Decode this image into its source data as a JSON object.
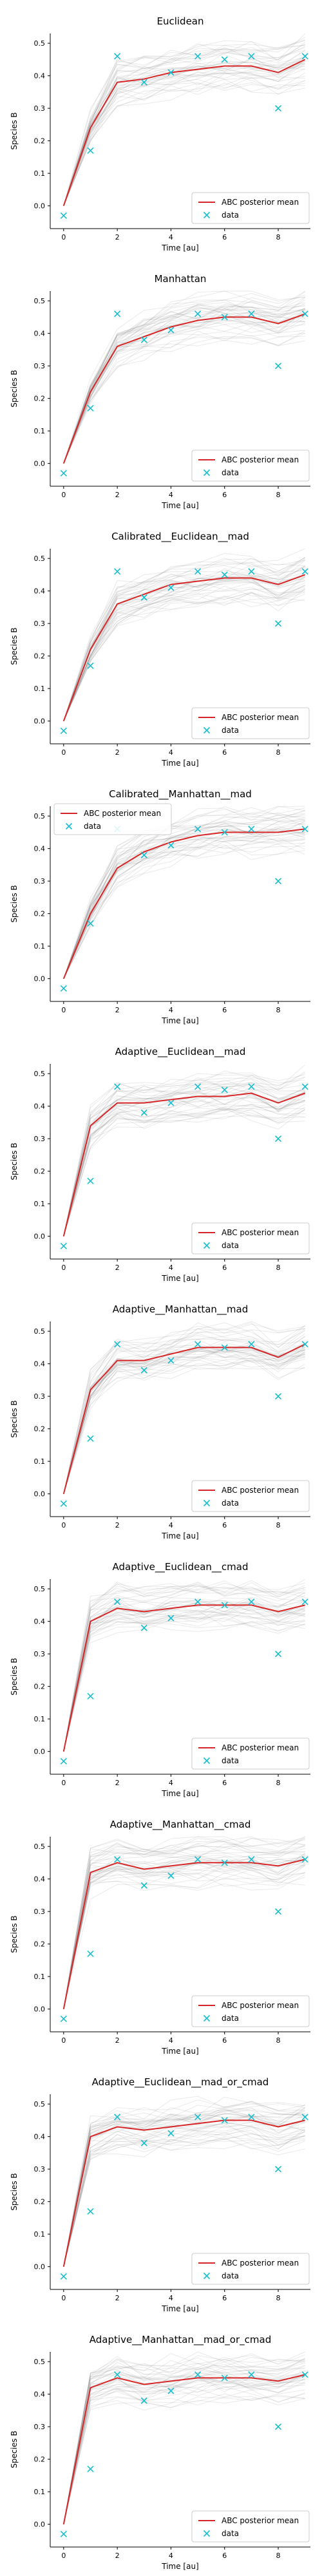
{
  "chart_data": [
    {
      "type": "line",
      "title": "Euclidean",
      "xlabel": "Time [au]",
      "ylabel": "Species B",
      "xlim": [
        -0.5,
        9.2
      ],
      "ylim": [
        -0.07,
        0.53
      ],
      "xticks": [
        0,
        2,
        4,
        6,
        8
      ],
      "yticks": [
        0.0,
        0.1,
        0.2,
        0.3,
        0.4,
        0.5
      ],
      "legend_position": "bottom-right",
      "colors": {
        "posterior": "#d62728",
        "data": "#17becf",
        "samples": "#888888"
      },
      "series": [
        {
          "name": "ABC posterior mean",
          "style": "line",
          "x": [
            0,
            1,
            2,
            3,
            4,
            5,
            6,
            7,
            8,
            9
          ],
          "y": [
            0.0,
            0.24,
            0.38,
            0.39,
            0.41,
            0.42,
            0.43,
            0.43,
            0.41,
            0.45
          ]
        },
        {
          "name": "data",
          "style": "markers",
          "x": [
            0,
            1,
            2,
            3,
            4,
            5,
            6,
            7,
            8,
            9
          ],
          "y": [
            -0.03,
            0.17,
            0.46,
            0.38,
            0.41,
            0.46,
            0.45,
            0.46,
            0.3,
            0.46
          ]
        }
      ]
    },
    {
      "type": "line",
      "title": "Manhattan",
      "xlabel": "Time [au]",
      "ylabel": "Species B",
      "xlim": [
        -0.5,
        9.2
      ],
      "ylim": [
        -0.07,
        0.53
      ],
      "xticks": [
        0,
        2,
        4,
        6,
        8
      ],
      "yticks": [
        0.0,
        0.1,
        0.2,
        0.3,
        0.4,
        0.5
      ],
      "legend_position": "bottom-right",
      "colors": {
        "posterior": "#d62728",
        "data": "#17becf",
        "samples": "#888888"
      },
      "series": [
        {
          "name": "ABC posterior mean",
          "style": "line",
          "x": [
            0,
            1,
            2,
            3,
            4,
            5,
            6,
            7,
            8,
            9
          ],
          "y": [
            0.0,
            0.22,
            0.36,
            0.39,
            0.42,
            0.44,
            0.45,
            0.45,
            0.43,
            0.46
          ]
        },
        {
          "name": "data",
          "style": "markers",
          "x": [
            0,
            1,
            2,
            3,
            4,
            5,
            6,
            7,
            8,
            9
          ],
          "y": [
            -0.03,
            0.17,
            0.46,
            0.38,
            0.41,
            0.46,
            0.45,
            0.46,
            0.3,
            0.46
          ]
        }
      ]
    },
    {
      "type": "line",
      "title": "Calibrated__Euclidean__mad",
      "xlabel": "Time [au]",
      "ylabel": "Species B",
      "xlim": [
        -0.5,
        9.2
      ],
      "ylim": [
        -0.07,
        0.53
      ],
      "xticks": [
        0,
        2,
        4,
        6,
        8
      ],
      "yticks": [
        0.0,
        0.1,
        0.2,
        0.3,
        0.4,
        0.5
      ],
      "legend_position": "bottom-right",
      "colors": {
        "posterior": "#d62728",
        "data": "#17becf",
        "samples": "#888888"
      },
      "series": [
        {
          "name": "ABC posterior mean",
          "style": "line",
          "x": [
            0,
            1,
            2,
            3,
            4,
            5,
            6,
            7,
            8,
            9
          ],
          "y": [
            0.0,
            0.22,
            0.36,
            0.39,
            0.42,
            0.43,
            0.44,
            0.44,
            0.42,
            0.45
          ]
        },
        {
          "name": "data",
          "style": "markers",
          "x": [
            0,
            1,
            2,
            3,
            4,
            5,
            6,
            7,
            8,
            9
          ],
          "y": [
            -0.03,
            0.17,
            0.46,
            0.38,
            0.41,
            0.46,
            0.45,
            0.46,
            0.3,
            0.46
          ]
        }
      ]
    },
    {
      "type": "line",
      "title": "Calibrated__Manhattan__mad",
      "xlabel": "Time [au]",
      "ylabel": "Species B",
      "xlim": [
        -0.5,
        9.2
      ],
      "ylim": [
        -0.07,
        0.53
      ],
      "xticks": [
        0,
        2,
        4,
        6,
        8
      ],
      "yticks": [
        0.0,
        0.1,
        0.2,
        0.3,
        0.4,
        0.5
      ],
      "legend_position": "top-left",
      "colors": {
        "posterior": "#d62728",
        "data": "#17becf",
        "samples": "#888888"
      },
      "series": [
        {
          "name": "ABC posterior mean",
          "style": "line",
          "x": [
            0,
            1,
            2,
            3,
            4,
            5,
            6,
            7,
            8,
            9
          ],
          "y": [
            0.0,
            0.2,
            0.34,
            0.39,
            0.42,
            0.44,
            0.45,
            0.45,
            0.45,
            0.46
          ]
        },
        {
          "name": "data",
          "style": "markers",
          "x": [
            0,
            1,
            2,
            3,
            4,
            5,
            6,
            7,
            8,
            9
          ],
          "y": [
            -0.03,
            0.17,
            0.46,
            0.38,
            0.41,
            0.46,
            0.45,
            0.46,
            0.3,
            0.46
          ]
        }
      ]
    },
    {
      "type": "line",
      "title": "Adaptive__Euclidean__mad",
      "xlabel": "Time [au]",
      "ylabel": "Species B",
      "xlim": [
        -0.5,
        9.2
      ],
      "ylim": [
        -0.07,
        0.53
      ],
      "xticks": [
        0,
        2,
        4,
        6,
        8
      ],
      "yticks": [
        0.0,
        0.1,
        0.2,
        0.3,
        0.4,
        0.5
      ],
      "legend_position": "bottom-right",
      "colors": {
        "posterior": "#d62728",
        "data": "#17becf",
        "samples": "#888888"
      },
      "series": [
        {
          "name": "ABC posterior mean",
          "style": "line",
          "x": [
            0,
            1,
            2,
            3,
            4,
            5,
            6,
            7,
            8,
            9
          ],
          "y": [
            0.0,
            0.34,
            0.41,
            0.41,
            0.42,
            0.43,
            0.43,
            0.44,
            0.41,
            0.44
          ]
        },
        {
          "name": "data",
          "style": "markers",
          "x": [
            0,
            1,
            2,
            3,
            4,
            5,
            6,
            7,
            8,
            9
          ],
          "y": [
            -0.03,
            0.17,
            0.46,
            0.38,
            0.41,
            0.46,
            0.45,
            0.46,
            0.3,
            0.46
          ]
        }
      ]
    },
    {
      "type": "line",
      "title": "Adaptive__Manhattan__mad",
      "xlabel": "Time [au]",
      "ylabel": "Species B",
      "xlim": [
        -0.5,
        9.2
      ],
      "ylim": [
        -0.07,
        0.53
      ],
      "xticks": [
        0,
        2,
        4,
        6,
        8
      ],
      "yticks": [
        0.0,
        0.1,
        0.2,
        0.3,
        0.4,
        0.5
      ],
      "legend_position": "bottom-right",
      "colors": {
        "posterior": "#d62728",
        "data": "#17becf",
        "samples": "#888888"
      },
      "series": [
        {
          "name": "ABC posterior mean",
          "style": "line",
          "x": [
            0,
            1,
            2,
            3,
            4,
            5,
            6,
            7,
            8,
            9
          ],
          "y": [
            0.0,
            0.32,
            0.41,
            0.41,
            0.43,
            0.45,
            0.45,
            0.45,
            0.42,
            0.46
          ]
        },
        {
          "name": "data",
          "style": "markers",
          "x": [
            0,
            1,
            2,
            3,
            4,
            5,
            6,
            7,
            8,
            9
          ],
          "y": [
            -0.03,
            0.17,
            0.46,
            0.38,
            0.41,
            0.46,
            0.45,
            0.46,
            0.3,
            0.46
          ]
        }
      ]
    },
    {
      "type": "line",
      "title": "Adaptive__Euclidean__cmad",
      "xlabel": "Time [au]",
      "ylabel": "Species B",
      "xlim": [
        -0.5,
        9.2
      ],
      "ylim": [
        -0.07,
        0.53
      ],
      "xticks": [
        0,
        2,
        4,
        6,
        8
      ],
      "yticks": [
        0.0,
        0.1,
        0.2,
        0.3,
        0.4,
        0.5
      ],
      "legend_position": "bottom-right",
      "colors": {
        "posterior": "#d62728",
        "data": "#17becf",
        "samples": "#888888"
      },
      "series": [
        {
          "name": "ABC posterior mean",
          "style": "line",
          "x": [
            0,
            1,
            2,
            3,
            4,
            5,
            6,
            7,
            8,
            9
          ],
          "y": [
            0.0,
            0.4,
            0.44,
            0.43,
            0.44,
            0.45,
            0.45,
            0.45,
            0.43,
            0.45
          ]
        },
        {
          "name": "data",
          "style": "markers",
          "x": [
            0,
            1,
            2,
            3,
            4,
            5,
            6,
            7,
            8,
            9
          ],
          "y": [
            -0.03,
            0.17,
            0.46,
            0.38,
            0.41,
            0.46,
            0.45,
            0.46,
            0.3,
            0.46
          ]
        }
      ]
    },
    {
      "type": "line",
      "title": "Adaptive__Manhattan__cmad",
      "xlabel": "Time [au]",
      "ylabel": "Species B",
      "xlim": [
        -0.5,
        9.2
      ],
      "ylim": [
        -0.07,
        0.53
      ],
      "xticks": [
        0,
        2,
        4,
        6,
        8
      ],
      "yticks": [
        0.0,
        0.1,
        0.2,
        0.3,
        0.4,
        0.5
      ],
      "legend_position": "bottom-right",
      "colors": {
        "posterior": "#d62728",
        "data": "#17becf",
        "samples": "#888888"
      },
      "series": [
        {
          "name": "ABC posterior mean",
          "style": "line",
          "x": [
            0,
            1,
            2,
            3,
            4,
            5,
            6,
            7,
            8,
            9
          ],
          "y": [
            0.0,
            0.42,
            0.45,
            0.43,
            0.44,
            0.45,
            0.45,
            0.45,
            0.44,
            0.46
          ]
        },
        {
          "name": "data",
          "style": "markers",
          "x": [
            0,
            1,
            2,
            3,
            4,
            5,
            6,
            7,
            8,
            9
          ],
          "y": [
            -0.03,
            0.17,
            0.46,
            0.38,
            0.41,
            0.46,
            0.45,
            0.46,
            0.3,
            0.46
          ]
        }
      ]
    },
    {
      "type": "line",
      "title": "Adaptive__Euclidean__mad_or_cmad",
      "xlabel": "Time [au]",
      "ylabel": "Species B",
      "xlim": [
        -0.5,
        9.2
      ],
      "ylim": [
        -0.07,
        0.53
      ],
      "xticks": [
        0,
        2,
        4,
        6,
        8
      ],
      "yticks": [
        0.0,
        0.1,
        0.2,
        0.3,
        0.4,
        0.5
      ],
      "legend_position": "bottom-right",
      "colors": {
        "posterior": "#d62728",
        "data": "#17becf",
        "samples": "#888888"
      },
      "series": [
        {
          "name": "ABC posterior mean",
          "style": "line",
          "x": [
            0,
            1,
            2,
            3,
            4,
            5,
            6,
            7,
            8,
            9
          ],
          "y": [
            0.0,
            0.4,
            0.43,
            0.42,
            0.43,
            0.44,
            0.45,
            0.45,
            0.43,
            0.45
          ]
        },
        {
          "name": "data",
          "style": "markers",
          "x": [
            0,
            1,
            2,
            3,
            4,
            5,
            6,
            7,
            8,
            9
          ],
          "y": [
            -0.03,
            0.17,
            0.46,
            0.38,
            0.41,
            0.46,
            0.45,
            0.46,
            0.3,
            0.46
          ]
        }
      ]
    },
    {
      "type": "line",
      "title": "Adaptive__Manhattan__mad_or_cmad",
      "xlabel": "Time [au]",
      "ylabel": "Species B",
      "xlim": [
        -0.5,
        9.2
      ],
      "ylim": [
        -0.07,
        0.53
      ],
      "xticks": [
        0,
        2,
        4,
        6,
        8
      ],
      "yticks": [
        0.0,
        0.1,
        0.2,
        0.3,
        0.4,
        0.5
      ],
      "legend_position": "bottom-right",
      "colors": {
        "posterior": "#d62728",
        "data": "#17becf",
        "samples": "#888888"
      },
      "series": [
        {
          "name": "ABC posterior mean",
          "style": "line",
          "x": [
            0,
            1,
            2,
            3,
            4,
            5,
            6,
            7,
            8,
            9
          ],
          "y": [
            0.0,
            0.42,
            0.45,
            0.43,
            0.44,
            0.45,
            0.45,
            0.45,
            0.44,
            0.46
          ]
        },
        {
          "name": "data",
          "style": "markers",
          "x": [
            0,
            1,
            2,
            3,
            4,
            5,
            6,
            7,
            8,
            9
          ],
          "y": [
            -0.03,
            0.17,
            0.46,
            0.38,
            0.41,
            0.46,
            0.45,
            0.46,
            0.3,
            0.46
          ]
        }
      ]
    }
  ]
}
